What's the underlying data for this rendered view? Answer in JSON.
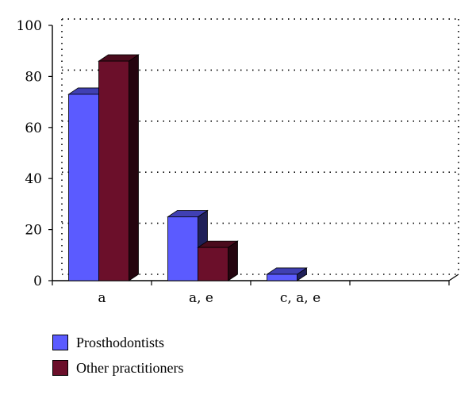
{
  "chart_data": {
    "type": "bar",
    "categories": [
      "a",
      "a, e",
      "c, a, e",
      ""
    ],
    "series": [
      {
        "name": "Prosthodontists",
        "values": [
          73,
          25,
          2.5,
          0
        ],
        "color": "#5b5bff"
      },
      {
        "name": "Other practitioners",
        "values": [
          86,
          13,
          0,
          0
        ],
        "color": "#6b0f2a"
      }
    ],
    "ylim": [
      0,
      100
    ],
    "yticks": [
      0,
      20,
      40,
      60,
      80,
      100
    ],
    "grid": true,
    "legend_position": "bottom-left",
    "title": "",
    "xlabel": "",
    "ylabel": ""
  },
  "legend": {
    "items": [
      {
        "label": "Prosthodontists",
        "color": "#5b5bff"
      },
      {
        "label": "Other practitioners",
        "color": "#6b0f2a"
      }
    ]
  }
}
